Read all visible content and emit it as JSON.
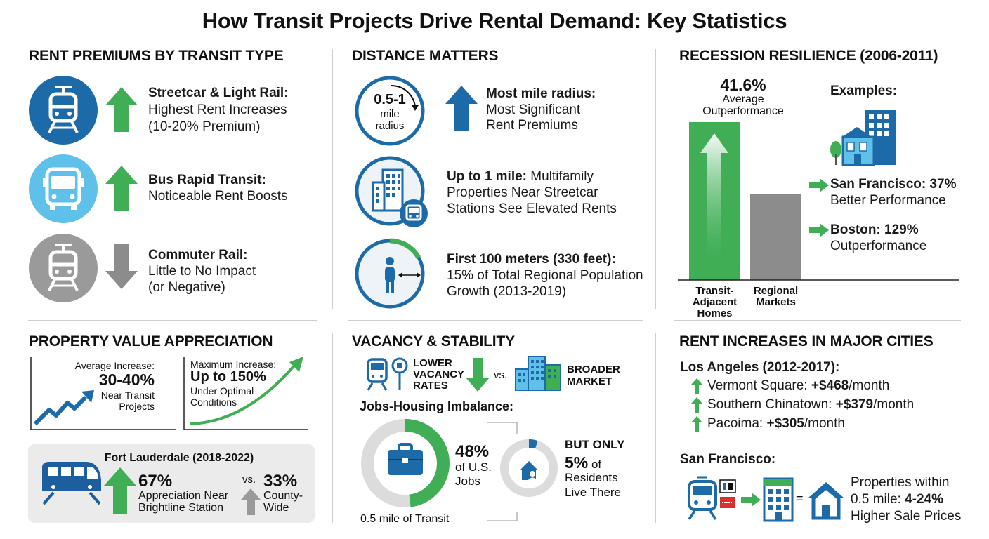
{
  "title": "How Transit Projects Drive Rental Demand: Key Statistics",
  "colors": {
    "blue": "#1f6fb2",
    "light_blue": "#5fc0ea",
    "green": "#3fae55",
    "gray": "#8c8c8c",
    "dark_blue": "#1d5f9e"
  },
  "rent_premiums": {
    "heading": "RENT PREMIUMS BY TRANSIT TYPE",
    "items": [
      {
        "icon": "tram-icon",
        "arrow": "up-arrow-icon",
        "title": "Streetcar & Light Rail:",
        "line1": "Highest Rent Increases",
        "line2": "(10-20% Premium)"
      },
      {
        "icon": "bus-icon",
        "arrow": "up-arrow-icon",
        "title": "Bus Rapid Transit:",
        "line1": "Noticeable Rent Boosts",
        "line2": ""
      },
      {
        "icon": "train-icon",
        "arrow": "down-arrow-icon",
        "title": "Commuter Rail:",
        "line1": "Little to No Impact",
        "line2": "(or Negative)"
      }
    ]
  },
  "distance": {
    "heading": "DISTANCE MATTERS",
    "radius_label": "0.5-1",
    "radius_sub1": "mile",
    "radius_sub2": "radius",
    "item1_title": "Most mile radius:",
    "item1_line1": "Most Significant",
    "item1_line2": "Rent Premiums",
    "item2_title": "Up to 1 mile:",
    "item2_rest": " Multifamily",
    "item2_line1": "Properties Near Streetcar",
    "item2_line2": "Stations See Elevated Rents",
    "item3_title": "First 100 meters (330 feet):",
    "item3_line1": "15% of Total Regional Population",
    "item3_line2": "Growth (2013-2019)"
  },
  "recession": {
    "heading": "RECESSION RESILIENCE (2006-2011)",
    "value": "41.6%",
    "label1": "Average",
    "label2": "Outperformance",
    "examples": "Examples:",
    "sf_title": "San Francisco: 37%",
    "sf_sub": "Better Performance",
    "boston_title": "Boston: 129%",
    "boston_sub": "Outperformance",
    "bar1_l1": "Transit-",
    "bar1_l2": "Adjacent",
    "bar1_l3": "Homes",
    "bar2_l1": "Regional",
    "bar2_l2": "Markets"
  },
  "property": {
    "heading": "PROPERTY VALUE APPRECIATION",
    "avg_label": "Average Increase:",
    "avg_value": "30-40%",
    "avg_sub1": "Near Transit",
    "avg_sub2": "Projects",
    "max_label": "Maximum Increase:",
    "max_value": "Up to 150%",
    "max_sub1": "Under Optimal",
    "max_sub2": "Conditions",
    "fl_title": "Fort Lauderdale (2018-2022)",
    "fl_value": "67%",
    "fl_sub1": "Appreciation Near",
    "fl_sub2": "Brightline Station",
    "vs": "vs.",
    "county_value": "33%",
    "county_sub1": "County-",
    "county_sub2": "Wide"
  },
  "vacancy": {
    "heading": "VACANCY & STABILITY",
    "lower1": "LOWER",
    "lower2": "VACANCY",
    "lower3": "RATES",
    "vs": "vs.",
    "broader1": "BROADER",
    "broader2": "MARKET",
    "jobs_heading": "Jobs-Housing Imbalance:",
    "jobs_value": "48%",
    "jobs_sub1": "of U.S.",
    "jobs_sub2": "Jobs",
    "jobs_fraction": 0.48,
    "transit_label": "0.5 mile of Transit",
    "but_only": "BUT ONLY",
    "res_value": "5%",
    "res_of": " of",
    "res_sub1": "Residents",
    "res_sub2": "Live There",
    "res_fraction": 0.05
  },
  "cities": {
    "heading": "RENT INCREASES IN MAJOR CITIES",
    "la_heading": "Los Angeles (2012-2017):",
    "la_items": [
      {
        "name": "Vermont Square: ",
        "value": "+$468",
        "unit": "/month"
      },
      {
        "name": "Southern Chinatown: ",
        "value": "+$379",
        "unit": "/month"
      },
      {
        "name": "Pacoima: ",
        "value": "+$305",
        "unit": "/month"
      }
    ],
    "sf_heading": "San Francisco:",
    "sf_line1": "Properties within",
    "sf_line2a": "0.5 mile: ",
    "sf_line2b": "4-24%",
    "sf_line3": "Higher Sale Prices",
    "equals": "="
  }
}
